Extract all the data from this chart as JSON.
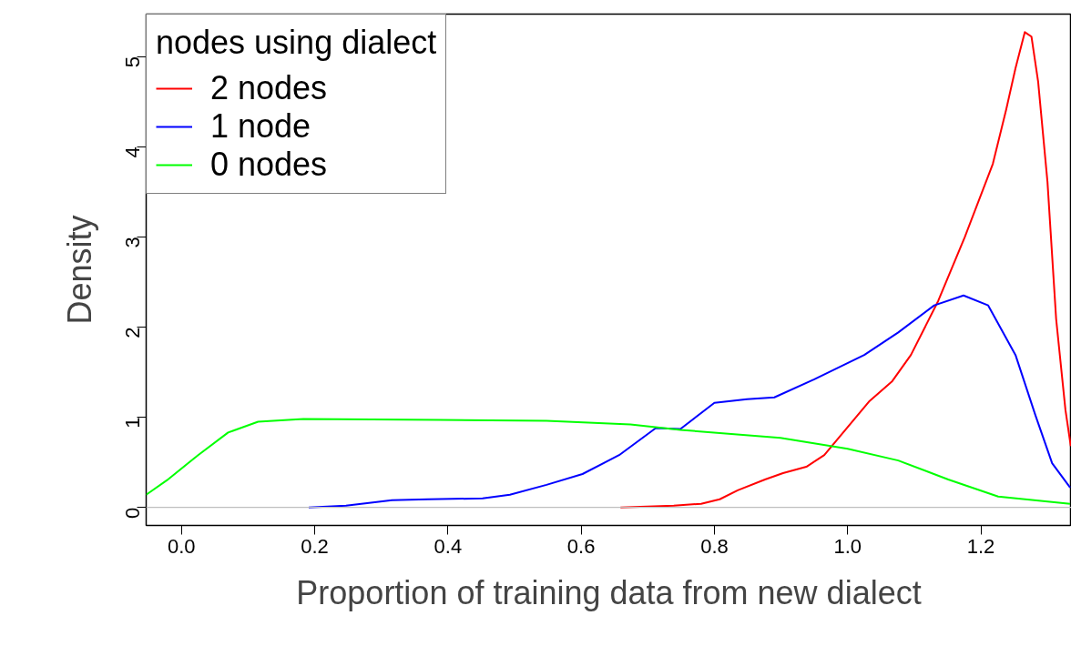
{
  "chart_data": {
    "type": "line",
    "xlabel": "Proportion of training data from new dialect",
    "ylabel": "Density",
    "legend_title": "nodes using dialect",
    "xlim": [
      -0.053,
      1.336
    ],
    "ylim": [
      -0.2,
      5.47
    ],
    "xticks": [
      {
        "value": 0,
        "label": "0.0"
      },
      0.2,
      0.4,
      0.6,
      0.8,
      {
        "value": 1,
        "label": "1.0"
      },
      1.2
    ],
    "yticks": [
      0,
      1,
      2,
      3,
      4,
      5
    ],
    "grid": false,
    "legend": "top left",
    "ref_lines": [
      {
        "axis": "y",
        "value": 0,
        "label": null,
        "color": "#bebebe"
      }
    ],
    "series": [
      {
        "name": "2 nodes",
        "color": "#ff0000",
        "x": [
          0.659,
          0.739,
          0.78,
          0.808,
          0.835,
          0.876,
          0.903,
          0.938,
          0.965,
          0.999,
          1.033,
          1.067,
          1.095,
          1.136,
          1.176,
          1.218,
          1.238,
          1.252,
          1.266,
          1.276,
          1.286,
          1.3,
          1.313,
          1.327,
          1.335
        ],
        "values": [
          0,
          0.02,
          0.04,
          0.09,
          0.19,
          0.31,
          0.38,
          0.45,
          0.58,
          0.88,
          1.18,
          1.4,
          1.69,
          2.29,
          3.0,
          3.81,
          4.41,
          4.87,
          5.27,
          5.22,
          4.72,
          3.61,
          2.09,
          1.08,
          0.68
        ]
      },
      {
        "name": "1 node",
        "color": "#0000ff",
        "x": [
          0.191,
          0.247,
          0.316,
          0.37,
          0.452,
          0.493,
          0.548,
          0.602,
          0.657,
          0.712,
          0.749,
          0.8,
          0.849,
          0.89,
          0.95,
          1.025,
          1.076,
          1.13,
          1.174,
          1.211,
          1.252,
          1.282,
          1.307,
          1.334
        ],
        "values": [
          0,
          0.02,
          0.08,
          0.09,
          0.1,
          0.14,
          0.25,
          0.37,
          0.58,
          0.88,
          0.87,
          1.16,
          1.2,
          1.22,
          1.42,
          1.69,
          1.94,
          2.24,
          2.35,
          2.24,
          1.69,
          1.02,
          0.49,
          0.22
        ]
      },
      {
        "name": "0 nodes",
        "color": "#00ff00",
        "x": [
          -0.053,
          -0.022,
          0.025,
          0.07,
          0.115,
          0.183,
          0.388,
          0.548,
          0.674,
          0.749,
          0.899,
          1.0,
          1.076,
          1.151,
          1.226,
          1.334
        ],
        "values": [
          0.14,
          0.3,
          0.58,
          0.83,
          0.95,
          0.98,
          0.97,
          0.96,
          0.92,
          0.86,
          0.77,
          0.65,
          0.52,
          0.31,
          0.12,
          0.04
        ]
      }
    ]
  }
}
